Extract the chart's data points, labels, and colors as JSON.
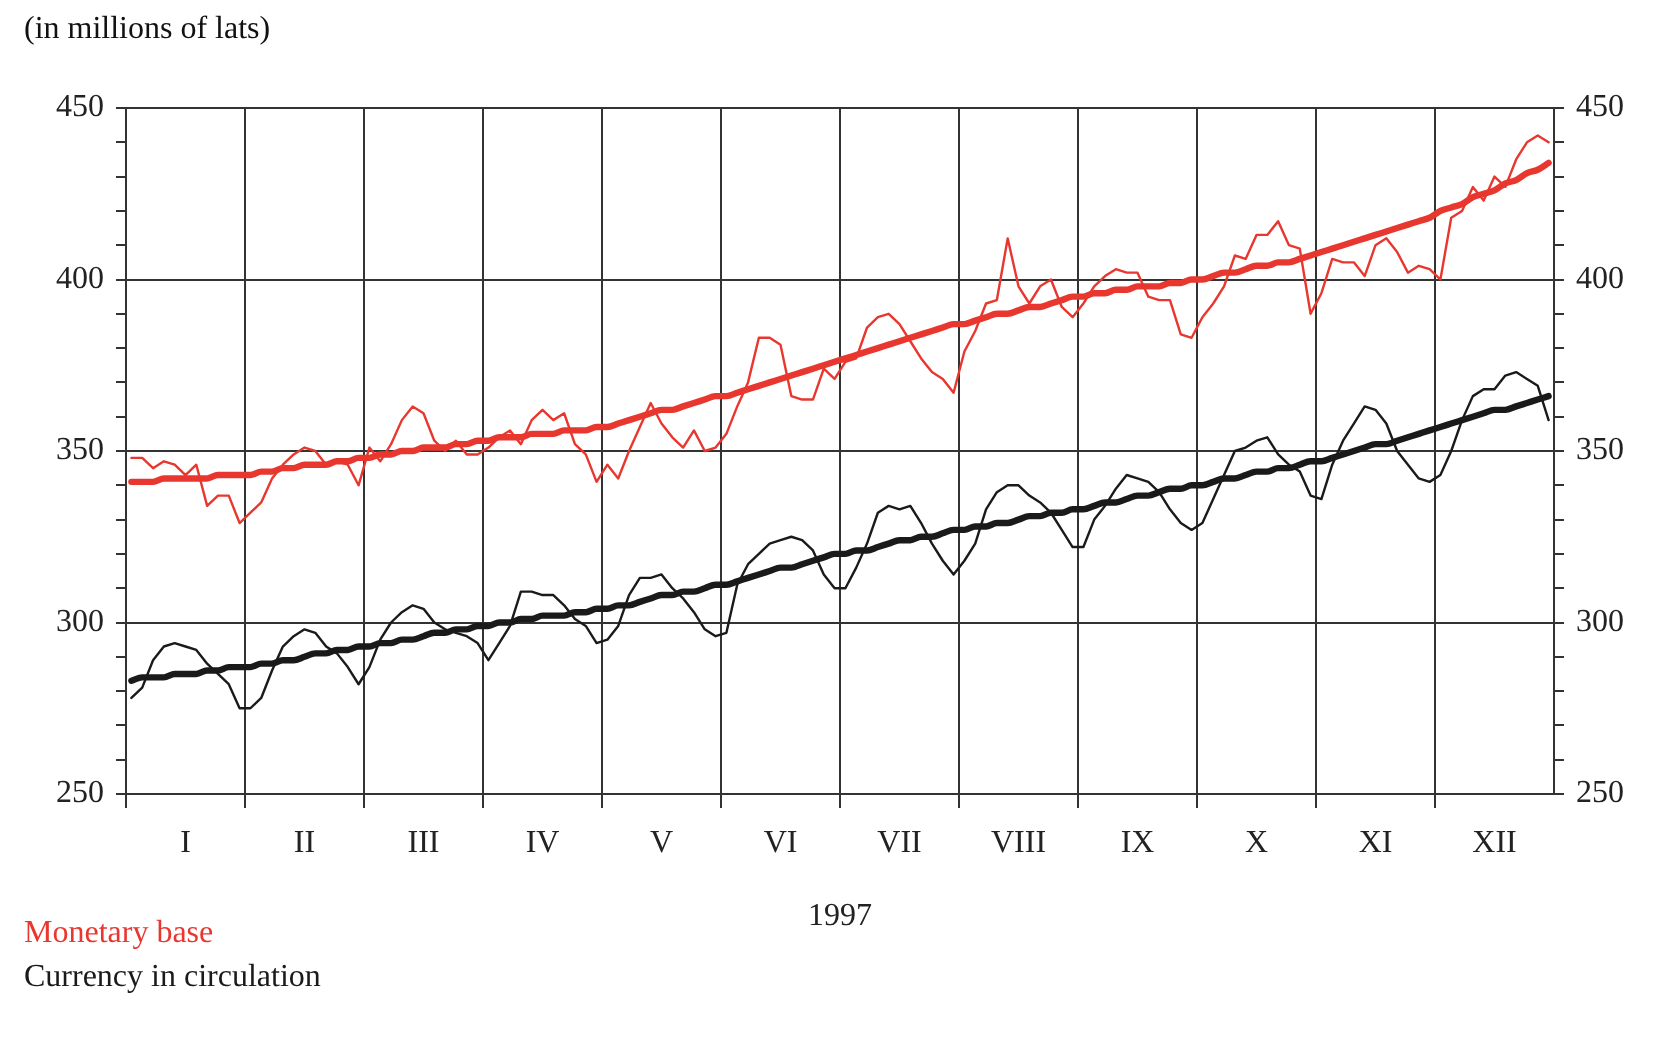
{
  "chart_data": {
    "type": "line",
    "ylabel": "(in millions of lats)",
    "xlabel": "1997",
    "categories": [
      null,
      null,
      null,
      null,
      null,
      "I",
      null,
      null,
      null,
      null,
      null,
      null,
      null,
      null,
      null,
      null,
      "II",
      null,
      null,
      null,
      null,
      null,
      null,
      null,
      null,
      null,
      null,
      "III",
      null,
      null,
      null,
      null,
      null,
      null,
      null,
      null,
      null,
      null,
      "IV",
      null,
      null,
      null,
      null,
      null,
      null,
      null,
      null,
      null,
      null,
      "V",
      null,
      null,
      null,
      null,
      null,
      null,
      null,
      null,
      null,
      null,
      "VI",
      null,
      null,
      null,
      null,
      null,
      null,
      null,
      null,
      null,
      null,
      "VII",
      null,
      null,
      null,
      null,
      null,
      null,
      null,
      null,
      null,
      null,
      "VIII",
      null,
      null,
      null,
      null,
      null,
      null,
      null,
      null,
      null,
      null,
      "IX",
      null,
      null,
      null,
      null,
      null,
      null,
      null,
      null,
      null,
      null,
      "X",
      null,
      null,
      null,
      null,
      null,
      null,
      null,
      null,
      null,
      null,
      "XI",
      null,
      null,
      null,
      null,
      null,
      null,
      null,
      null,
      null,
      null,
      "XII",
      null,
      null,
      null,
      null,
      null
    ],
    "ylim": [
      250,
      450
    ],
    "yticks": [
      250,
      {
        "value": 260,
        "label": null
      },
      {
        "value": 270,
        "label": null
      },
      {
        "value": 280,
        "label": null
      },
      {
        "value": 290,
        "label": null
      },
      300,
      {
        "value": 310,
        "label": null
      },
      {
        "value": 320,
        "label": null
      },
      {
        "value": 330,
        "label": null
      },
      {
        "value": 340,
        "label": null
      },
      350,
      {
        "value": 360,
        "label": null
      },
      {
        "value": 370,
        "label": null
      },
      {
        "value": 380,
        "label": null
      },
      {
        "value": 390,
        "label": null
      },
      400,
      {
        "value": 410,
        "label": null
      },
      {
        "value": 420,
        "label": null
      },
      {
        "value": 430,
        "label": null
      },
      {
        "value": 440,
        "label": null
      },
      450
    ],
    "y2lim": [
      250,
      450
    ],
    "y2ticks": [
      250,
      {
        "value": 260,
        "label": null
      },
      {
        "value": 270,
        "label": null
      },
      {
        "value": 280,
        "label": null
      },
      {
        "value": 290,
        "label": null
      },
      300,
      {
        "value": 310,
        "label": null
      },
      {
        "value": 320,
        "label": null
      },
      {
        "value": 330,
        "label": null
      },
      {
        "value": 340,
        "label": null
      },
      350,
      {
        "value": 360,
        "label": null
      },
      {
        "value": 370,
        "label": null
      },
      {
        "value": 380,
        "label": null
      },
      {
        "value": 390,
        "label": null
      },
      400,
      {
        "value": 410,
        "label": null
      },
      {
        "value": 420,
        "label": null
      },
      {
        "value": 430,
        "label": null
      },
      {
        "value": 440,
        "label": null
      },
      450
    ],
    "grid": true,
    "legend": "bottom left",
    "marker": "none",
    "line_style": "solid",
    "series": [
      {
        "name": "Monetary base",
        "color": "#e8372e",
        "values": [
          348,
          348,
          345,
          347,
          346,
          343,
          346,
          334,
          337,
          337,
          329,
          332,
          335,
          342,
          346,
          349,
          351,
          350,
          346,
          347,
          346,
          340,
          351,
          347,
          352,
          359,
          363,
          361,
          353,
          350,
          353,
          349,
          349,
          351,
          354,
          356,
          352,
          359,
          362,
          359,
          361,
          352,
          349,
          341,
          346,
          342,
          350,
          357,
          364,
          358,
          354,
          351,
          356,
          350,
          351,
          355,
          363,
          370,
          383,
          383,
          381,
          366,
          365,
          365,
          374,
          371,
          376,
          377,
          386,
          389,
          390,
          387,
          382,
          377,
          373,
          371,
          367,
          379,
          385,
          393,
          394,
          412,
          398,
          393,
          398,
          400,
          392,
          389,
          393,
          398,
          401,
          403,
          402,
          402,
          395,
          394,
          394,
          384,
          383,
          389,
          393,
          398,
          407,
          406,
          413,
          413,
          417,
          410,
          409,
          390,
          396,
          406,
          405,
          405,
          401,
          410,
          412,
          408,
          402,
          404,
          403,
          400,
          418,
          420,
          427,
          423,
          430,
          427,
          435,
          440,
          442,
          440
        ]
      },
      {
        "name": "Currency in circulation",
        "color": "#1a1a1a",
        "values": [
          278,
          281,
          289,
          293,
          294,
          293,
          292,
          288,
          285,
          282,
          275,
          275,
          278,
          286,
          293,
          296,
          298,
          297,
          293,
          291,
          287,
          282,
          287,
          295,
          300,
          303,
          305,
          304,
          300,
          298,
          297,
          296,
          294,
          289,
          294,
          299,
          309,
          309,
          308,
          308,
          305,
          301,
          299,
          294,
          295,
          299,
          308,
          313,
          313,
          314,
          310,
          307,
          303,
          298,
          296,
          297,
          311,
          317,
          320,
          323,
          324,
          325,
          324,
          321,
          314,
          310,
          310,
          316,
          323,
          332,
          334,
          333,
          334,
          329,
          323,
          318,
          314,
          318,
          323,
          333,
          338,
          340,
          340,
          337,
          335,
          332,
          327,
          322,
          322,
          330,
          334,
          339,
          343,
          342,
          341,
          338,
          333,
          329,
          327,
          329,
          336,
          343,
          350,
          351,
          353,
          354,
          349,
          346,
          344,
          337,
          336,
          346,
          353,
          358,
          363,
          362,
          358,
          350,
          346,
          342,
          341,
          343,
          350,
          359,
          366,
          368,
          368,
          372,
          373,
          371,
          369,
          359
        ]
      },
      {
        "color": "#e8372e",
        "values": [
          341,
          341,
          341,
          342,
          342,
          342,
          342,
          342,
          343,
          343,
          343,
          343,
          344,
          344,
          345,
          345,
          346,
          346,
          346,
          347,
          347,
          348,
          348,
          349,
          349,
          350,
          350,
          351,
          351,
          351,
          352,
          352,
          353,
          353,
          354,
          354,
          354,
          355,
          355,
          355,
          356,
          356,
          356,
          357,
          357,
          358,
          359,
          360,
          361,
          362,
          362,
          363,
          364,
          365,
          366,
          366,
          367,
          368,
          369,
          370,
          371,
          372,
          373,
          374,
          375,
          376,
          377,
          378,
          379,
          380,
          381,
          382,
          383,
          384,
          385,
          386,
          387,
          387,
          388,
          389,
          390,
          390,
          391,
          392,
          392,
          393,
          394,
          395,
          395,
          396,
          396,
          397,
          397,
          398,
          398,
          398,
          399,
          399,
          400,
          400,
          401,
          402,
          402,
          403,
          404,
          404,
          405,
          405,
          406,
          407,
          408,
          409,
          410,
          411,
          412,
          413,
          414,
          415,
          416,
          417,
          418,
          420,
          421,
          422,
          424,
          425,
          426,
          428,
          429,
          431,
          432,
          434
        ]
      },
      {
        "color": "#1a1a1a",
        "values": [
          283,
          284,
          284,
          284,
          285,
          285,
          285,
          286,
          286,
          287,
          287,
          287,
          288,
          288,
          289,
          289,
          290,
          291,
          291,
          292,
          292,
          293,
          293,
          294,
          294,
          295,
          295,
          296,
          297,
          297,
          298,
          298,
          299,
          299,
          300,
          300,
          301,
          301,
          302,
          302,
          302,
          303,
          303,
          304,
          304,
          305,
          305,
          306,
          307,
          308,
          308,
          309,
          309,
          310,
          311,
          311,
          312,
          313,
          314,
          315,
          316,
          316,
          317,
          318,
          319,
          320,
          320,
          321,
          321,
          322,
          323,
          324,
          324,
          325,
          325,
          326,
          327,
          327,
          328,
          328,
          329,
          329,
          330,
          331,
          331,
          332,
          332,
          333,
          333,
          334,
          335,
          335,
          336,
          337,
          337,
          338,
          339,
          339,
          340,
          340,
          341,
          342,
          342,
          343,
          344,
          344,
          345,
          345,
          346,
          347,
          347,
          348,
          349,
          350,
          351,
          352,
          352,
          353,
          354,
          355,
          356,
          357,
          358,
          359,
          360,
          361,
          362,
          362,
          363,
          364,
          365,
          366
        ]
      }
    ]
  }
}
